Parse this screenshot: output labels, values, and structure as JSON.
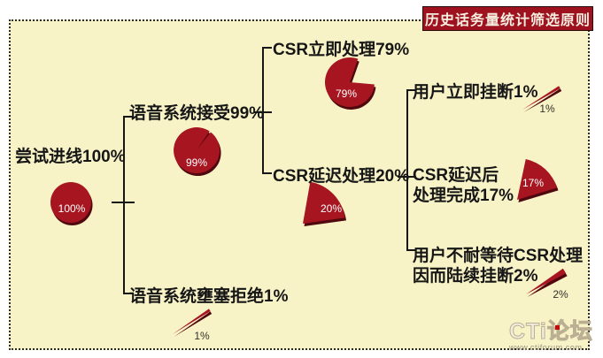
{
  "title": "历史话务量统计筛选原则",
  "colors": {
    "background": "#FFFFFF",
    "board_bg": "#F8F3C6",
    "pie_red": "#A61520",
    "pie_shadow": "#4F080E",
    "title_bg": "#9E1220",
    "title_text": "#F6EFE0",
    "line": "#161616"
  },
  "nodes": {
    "root": {
      "label": "尝试进线100%",
      "value": 100,
      "pct_label": "100%"
    },
    "accepted": {
      "label": "语音系统接受99%",
      "value": 99,
      "pct_label": "99%"
    },
    "rejected": {
      "label": "语音系统壅塞拒绝1%",
      "value": 1,
      "pct_label": "1%"
    },
    "csr_immediate": {
      "label": "CSR立即处理79%",
      "value": 79,
      "pct_label": "79%"
    },
    "csr_delayed": {
      "label": "CSR延迟处理20%",
      "value": 20,
      "pct_label": "20%"
    },
    "hangup_immediate": {
      "label": "用户立即挂断1%",
      "value": 1,
      "pct_label": "1%"
    },
    "csr_delayed_done": {
      "label": "CSR延迟后\n处理完成17%",
      "value": 17,
      "pct_label": "17%"
    },
    "hangup_waiting": {
      "label": "用户不耐等待CSR处理\n因而陆续挂断2%",
      "value": 2,
      "pct_label": "2%"
    }
  },
  "chart_data": {
    "type": "pie",
    "title": "历史话务量统计筛选原则",
    "series": [
      {
        "name": "尝试进线",
        "parent": null,
        "value_pct": 100
      },
      {
        "name": "语音系统接受",
        "parent": "尝试进线",
        "value_pct": 99
      },
      {
        "name": "语音系统壅塞拒绝",
        "parent": "尝试进线",
        "value_pct": 1
      },
      {
        "name": "CSR立即处理",
        "parent": "语音系统接受",
        "value_pct": 79
      },
      {
        "name": "CSR延迟处理",
        "parent": "语音系统接受",
        "value_pct": 20
      },
      {
        "name": "用户立即挂断",
        "parent": "CSR延迟处理",
        "value_pct": 1
      },
      {
        "name": "CSR延迟后处理完成",
        "parent": "CSR延迟处理",
        "value_pct": 17
      },
      {
        "name": "用户不耐等待CSR处理因而陆续挂断",
        "parent": "CSR延迟处理",
        "value_pct": 2
      }
    ]
  },
  "logo": {
    "brand": "CTi论坛",
    "url": "www.ctiforum.com"
  }
}
